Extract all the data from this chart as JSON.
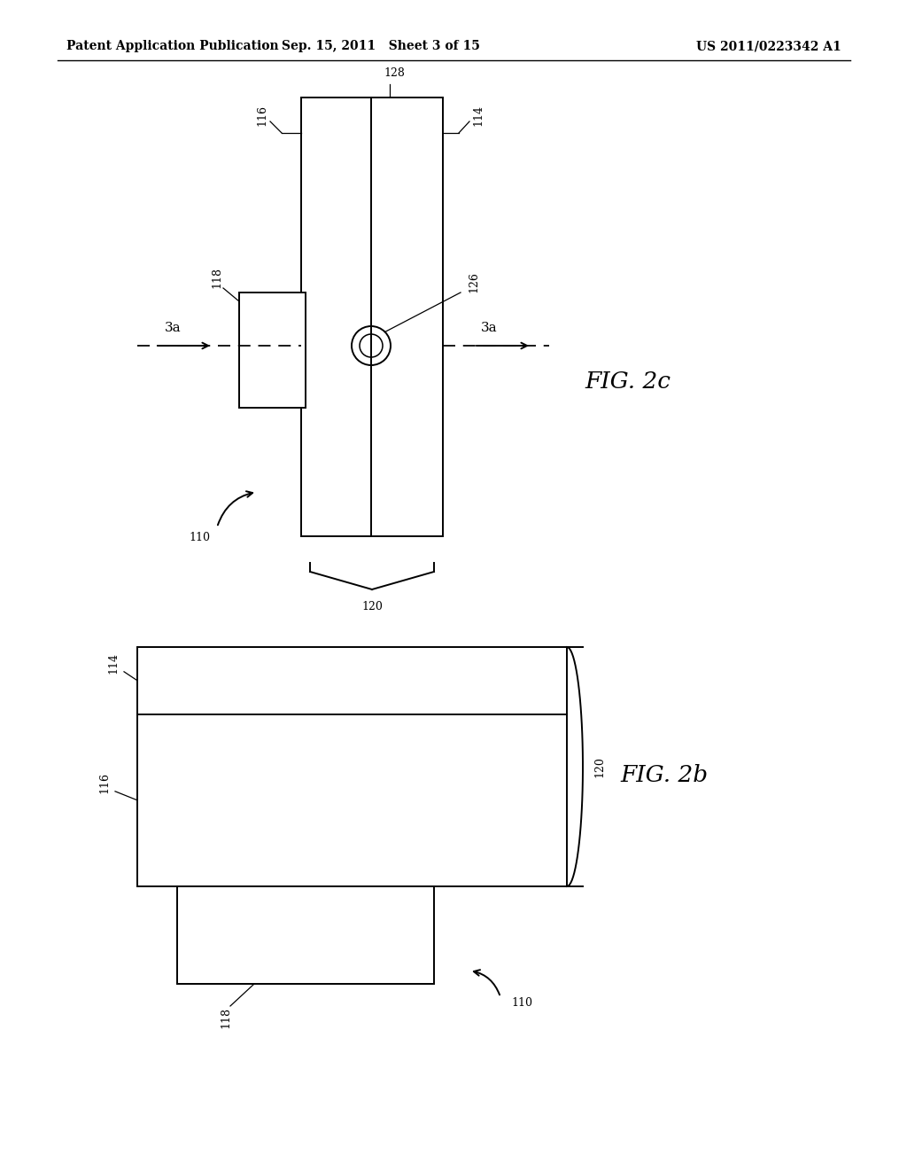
{
  "bg_color": "#ffffff",
  "line_color": "#000000",
  "header_left": "Patent Application Publication",
  "header_center": "Sep. 15, 2011   Sheet 3 of 15",
  "header_right": "US 2011/0223342 A1",
  "fig2c_label": "FIG. 2c",
  "fig2b_label": "FIG. 2b"
}
